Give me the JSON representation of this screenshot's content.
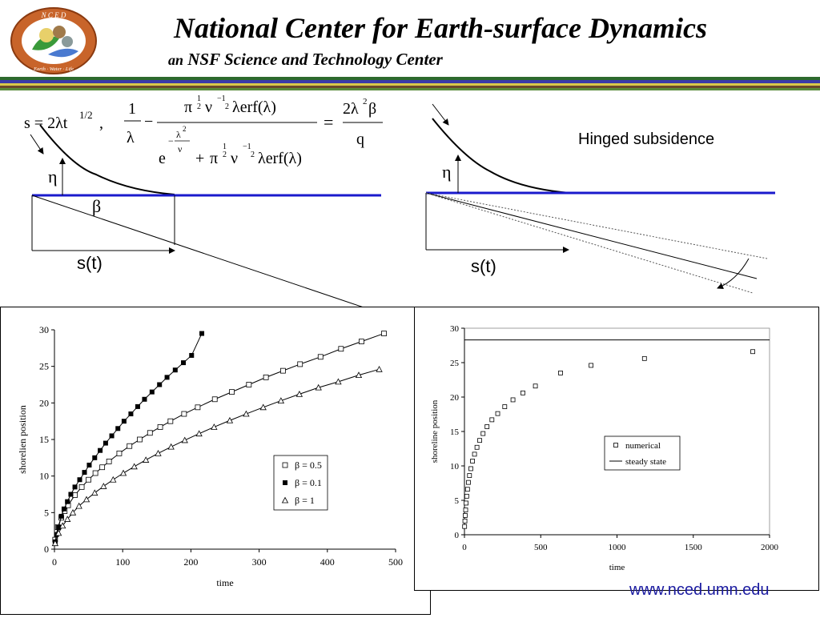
{
  "header": {
    "title": "National Center  for Earth-surface Dynamics",
    "subtitle_prefix": "an",
    "subtitle": "NSF Science and Technology Center",
    "logo_text_top": "N C E D",
    "logo_text_bottom": "Earth · Water · Life",
    "stripe_colors": [
      "#2d6a2d",
      "#3a3aa8",
      "#d9c94a",
      "#6b4a2a",
      "#5a8a3a"
    ]
  },
  "diagram_left": {
    "formula_s": "s = 2λt",
    "formula_s_exp": "1/2",
    "formula_s_comma": ",",
    "eta": "η",
    "beta": "β",
    "s_t": "s(t)",
    "eq_one": "1",
    "eq_lambda": "λ",
    "eq_minus": "−",
    "eq_num_pi": "π",
    "eq_half": "1",
    "eq_half_den": "2",
    "eq_nu": "ν",
    "eq_neg_half": "−1",
    "eq_lambda_erf": "λerf(λ)",
    "eq_den_e": "e",
    "eq_den_exp_num": "λ",
    "eq_den_exp_num_sup": "2",
    "eq_den_exp_den": "ν",
    "eq_den_plus": "+",
    "eq_equals": "=",
    "eq_rhs_num": "2λ",
    "eq_rhs_num_sup": "2",
    "eq_rhs_beta": "β",
    "eq_rhs_den": "q"
  },
  "diagram_right": {
    "label": "Hinged subsidence",
    "eta": "η",
    "s_t": "s(t)"
  },
  "colors": {
    "base_line": "#1a1acc",
    "website": "#1a1aa0"
  },
  "website": "www.nced.umn.edu",
  "chart_data": [
    {
      "type": "scatter",
      "xlabel": "time",
      "ylabel": "shorelien position",
      "xlim": [
        0,
        500
      ],
      "ylim": [
        0,
        30
      ],
      "xticks": [
        0,
        100,
        200,
        300,
        400,
        500
      ],
      "yticks": [
        0,
        5,
        10,
        15,
        20,
        25,
        30
      ],
      "legend_position": "lower-right",
      "series": [
        {
          "name": "β = 0.5",
          "marker": "open-square",
          "x": [
            1,
            5,
            10,
            15,
            20,
            30,
            40,
            50,
            60,
            70,
            80,
            95,
            110,
            125,
            140,
            155,
            170,
            190,
            210,
            235,
            260,
            285,
            310,
            335,
            360,
            390,
            420,
            450,
            483
          ],
          "y": [
            1.3,
            3.0,
            4.3,
            5.2,
            6.0,
            7.4,
            8.5,
            9.5,
            10.4,
            11.2,
            12.0,
            13.1,
            14.1,
            15.0,
            15.9,
            16.7,
            17.5,
            18.5,
            19.4,
            20.5,
            21.5,
            22.5,
            23.5,
            24.4,
            25.3,
            26.3,
            27.4,
            28.4,
            29.5
          ]
        },
        {
          "name": "β = 0.1",
          "marker": "filled-square",
          "x": [
            1,
            3,
            6,
            10,
            14,
            19,
            24,
            30,
            37,
            44,
            51,
            59,
            67,
            75,
            84,
            93,
            102,
            112,
            122,
            132,
            143,
            154,
            165,
            177,
            189,
            201,
            216
          ],
          "y": [
            1.0,
            2.0,
            3.0,
            4.5,
            5.5,
            6.5,
            7.5,
            8.5,
            9.5,
            10.5,
            11.5,
            12.5,
            13.5,
            14.5,
            15.5,
            16.5,
            17.5,
            18.5,
            19.5,
            20.5,
            21.5,
            22.5,
            23.5,
            24.5,
            25.5,
            26.5,
            29.5
          ]
        },
        {
          "name": "β = 1",
          "marker": "open-triangle",
          "x": [
            1,
            6,
            12,
            19,
            27,
            36,
            47,
            59,
            72,
            86,
            101,
            117,
            134,
            152,
            171,
            191,
            212,
            234,
            257,
            281,
            306,
            332,
            359,
            387,
            416,
            446,
            476
          ],
          "y": [
            0.8,
            2.2,
            3.2,
            4.1,
            5.0,
            5.9,
            6.8,
            7.7,
            8.6,
            9.5,
            10.4,
            11.3,
            12.2,
            13.1,
            14.0,
            14.9,
            15.8,
            16.7,
            17.6,
            18.5,
            19.4,
            20.3,
            21.2,
            22.1,
            22.9,
            23.8,
            24.6
          ]
        }
      ]
    },
    {
      "type": "scatter",
      "xlabel": "time",
      "ylabel": "shoreline position",
      "xlim": [
        0,
        2000
      ],
      "ylim": [
        0,
        30
      ],
      "xticks": [
        0,
        500,
        1000,
        1500,
        2000
      ],
      "yticks": [
        0,
        5,
        10,
        15,
        20,
        25,
        30
      ],
      "legend_position": "center-right",
      "series": [
        {
          "name": "numerical",
          "marker": "open-square",
          "x": [
            1,
            3,
            5,
            8,
            11,
            15,
            20,
            26,
            33,
            42,
            53,
            66,
            82,
            100,
            122,
            148,
            180,
            218,
            264,
            318,
            383,
            465,
            630,
            830,
            1180,
            1890
          ],
          "y": [
            1.2,
            2.0,
            2.8,
            3.6,
            4.6,
            5.6,
            6.6,
            7.6,
            8.6,
            9.6,
            10.7,
            11.7,
            12.7,
            13.7,
            14.7,
            15.7,
            16.7,
            17.6,
            18.6,
            19.6,
            20.6,
            21.6,
            23.5,
            24.6,
            25.6,
            26.6
          ]
        },
        {
          "name": "steady state",
          "marker": "line",
          "x": [
            0,
            2000
          ],
          "y": [
            28.3,
            28.3
          ]
        }
      ]
    }
  ]
}
